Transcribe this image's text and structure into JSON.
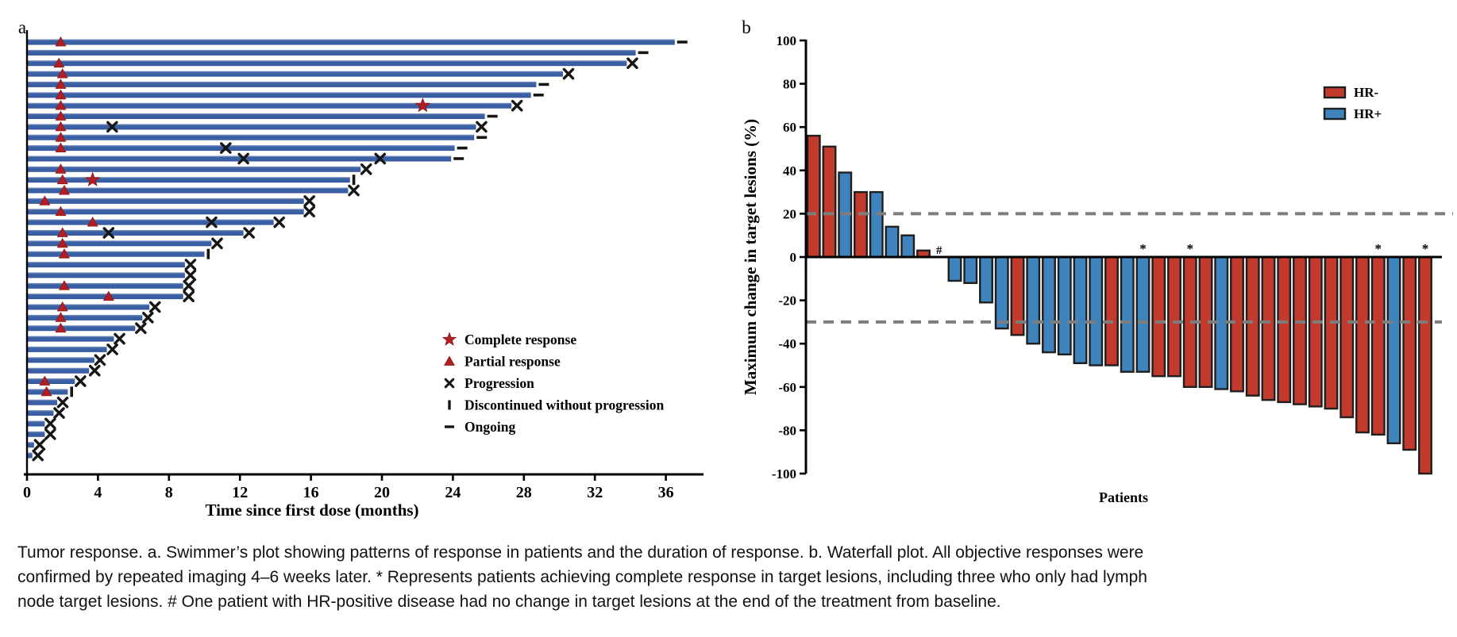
{
  "colors": {
    "swimmer_bar": "#3a5fa3",
    "swimmer_bar_light": "#8099c7",
    "swimmer_bar_dark": "#2d5197",
    "response_red": "#b01f24",
    "marker_black": "#161616",
    "hr_negative": "#c13a2c",
    "hr_positive": "#3f83bd",
    "bar_outline": "#1f1f1f",
    "dashed_line": "#7d7d7d",
    "axis": "#000000",
    "caption_text": "#111111"
  },
  "caption": {
    "lines": [
      "Tumor response. a. Swimmer’s plot showing patterns of response in patients and the duration of response. b. Waterfall plot. All objective responses were",
      "confirmed by repeated imaging 4–6 weeks later. * Represents patients achieving complete response in target lesions, including three who only had lymph",
      "node target lesions. # One patient with HR-positive disease had no change in target lesions at the end of the treatment from baseline."
    ]
  },
  "chart_data": [
    {
      "type": "bar",
      "subtype": "swimmer",
      "panel_label": "a",
      "xlabel": "Time since first dose (months)",
      "xlim": [
        0,
        38
      ],
      "xticks": [
        0,
        4,
        8,
        12,
        16,
        20,
        24,
        28,
        32,
        36
      ],
      "legend": [
        {
          "marker": "star",
          "label": "Complete response"
        },
        {
          "marker": "triangle",
          "label": "Partial response"
        },
        {
          "marker": "x",
          "label": "Progression"
        },
        {
          "marker": "bar",
          "label": "Discontinued without progression"
        },
        {
          "marker": "dash",
          "label": "Ongoing"
        }
      ],
      "bars": [
        {
          "m": 36.5,
          "end": "ongoing",
          "pr": 1.9
        },
        {
          "m": 34.3,
          "end": "ongoing"
        },
        {
          "m": 33.8,
          "end": "x",
          "pr": 1.8
        },
        {
          "m": 30.2,
          "end": "x",
          "pr": 2.0
        },
        {
          "m": 28.7,
          "end": "ongoing",
          "pr": 1.9
        },
        {
          "m": 28.4,
          "end": "ongoing",
          "pr": 1.9
        },
        {
          "m": 27.3,
          "end": "x",
          "pr": 1.9,
          "cr": 22.3
        },
        {
          "m": 25.8,
          "end": "ongoing",
          "pr": 1.9
        },
        {
          "m": 25.3,
          "end": "x",
          "pr": 1.9,
          "xs": [
            4.8
          ]
        },
        {
          "m": 25.2,
          "end": "ongoing",
          "pr": 1.9
        },
        {
          "m": 24.1,
          "end": "ongoing",
          "pr": 1.9,
          "xs": [
            11.2
          ]
        },
        {
          "m": 23.9,
          "end": "ongoing",
          "xs": [
            12.2,
            19.9
          ]
        },
        {
          "m": 18.8,
          "end": "x",
          "pr": 1.9
        },
        {
          "m": 18.2,
          "end": "disc",
          "pr": 2.0,
          "cr": 3.7
        },
        {
          "m": 18.1,
          "end": "x",
          "pr": 2.1
        },
        {
          "m": 15.6,
          "end": "x",
          "pr": 1.0
        },
        {
          "m": 15.6,
          "end": "x",
          "pr": 1.9
        },
        {
          "m": 13.9,
          "end": "x",
          "pr": 3.7,
          "xs": [
            10.4
          ]
        },
        {
          "m": 12.2,
          "end": "x",
          "pr": 2.0,
          "xs": [
            4.6
          ]
        },
        {
          "m": 10.4,
          "end": "x",
          "pr": 2.0
        },
        {
          "m": 10.0,
          "end": "disc",
          "pr": 2.1
        },
        {
          "m": 8.9,
          "end": "x"
        },
        {
          "m": 8.9,
          "end": "x"
        },
        {
          "m": 8.8,
          "end": "x",
          "pr": 2.1
        },
        {
          "m": 8.8,
          "end": "x",
          "pr": 4.6
        },
        {
          "m": 6.9,
          "end": "x",
          "pr": 2.0
        },
        {
          "m": 6.5,
          "end": "x",
          "pr": 1.9
        },
        {
          "m": 6.1,
          "end": "x",
          "pr": 1.9
        },
        {
          "m": 4.9,
          "end": "x"
        },
        {
          "m": 4.5,
          "end": "x"
        },
        {
          "m": 3.8,
          "end": "x"
        },
        {
          "m": 3.5,
          "end": "x"
        },
        {
          "m": 2.7,
          "end": "x",
          "pr": 1.0
        },
        {
          "m": 2.3,
          "end": "disc",
          "pr": 1.1
        },
        {
          "m": 1.7,
          "end": "x"
        },
        {
          "m": 1.5,
          "end": "x"
        },
        {
          "m": 1.0,
          "end": "x"
        },
        {
          "m": 1.0,
          "end": "x"
        },
        {
          "m": 0.4,
          "end": "x"
        },
        {
          "m": 0.3,
          "end": "x"
        }
      ]
    },
    {
      "type": "bar",
      "subtype": "waterfall",
      "panel_label": "b",
      "xlabel": "Patients",
      "ylabel": "Maximum change in target lesions (%)",
      "ylim": [
        -100,
        100
      ],
      "yticks": [
        100,
        80,
        60,
        40,
        20,
        0,
        -20,
        -40,
        -60,
        -80,
        -100
      ],
      "reference_lines": [
        20,
        -30
      ],
      "legend": [
        {
          "label": "HR-",
          "group": "-"
        },
        {
          "label": "HR+",
          "group": "+"
        }
      ],
      "values": [
        {
          "v": 56,
          "hr": "-"
        },
        {
          "v": 51,
          "hr": "-"
        },
        {
          "v": 39,
          "hr": "+"
        },
        {
          "v": 30,
          "hr": "-"
        },
        {
          "v": 30,
          "hr": "+"
        },
        {
          "v": 14,
          "hr": "+"
        },
        {
          "v": 10,
          "hr": "+"
        },
        {
          "v": 3,
          "hr": "-"
        },
        {
          "v": 0,
          "hr": "+",
          "note": "#"
        },
        {
          "v": -11,
          "hr": "+"
        },
        {
          "v": -12,
          "hr": "+"
        },
        {
          "v": -21,
          "hr": "+"
        },
        {
          "v": -33,
          "hr": "+"
        },
        {
          "v": -36,
          "hr": "-"
        },
        {
          "v": -40,
          "hr": "+"
        },
        {
          "v": -44,
          "hr": "+"
        },
        {
          "v": -45,
          "hr": "+"
        },
        {
          "v": -49,
          "hr": "+"
        },
        {
          "v": -50,
          "hr": "+"
        },
        {
          "v": -50,
          "hr": "-"
        },
        {
          "v": -53,
          "hr": "+"
        },
        {
          "v": -53,
          "hr": "+",
          "note": "*"
        },
        {
          "v": -55,
          "hr": "-"
        },
        {
          "v": -55,
          "hr": "-"
        },
        {
          "v": -60,
          "hr": "-",
          "note": "*"
        },
        {
          "v": -60,
          "hr": "-"
        },
        {
          "v": -61,
          "hr": "+"
        },
        {
          "v": -62,
          "hr": "-"
        },
        {
          "v": -64,
          "hr": "-"
        },
        {
          "v": -66,
          "hr": "-"
        },
        {
          "v": -67,
          "hr": "-"
        },
        {
          "v": -68,
          "hr": "-"
        },
        {
          "v": -69,
          "hr": "-"
        },
        {
          "v": -70,
          "hr": "-"
        },
        {
          "v": -74,
          "hr": "-"
        },
        {
          "v": -81,
          "hr": "-"
        },
        {
          "v": -82,
          "hr": "-",
          "note": "*"
        },
        {
          "v": -86,
          "hr": "+"
        },
        {
          "v": -89,
          "hr": "-"
        },
        {
          "v": -100,
          "hr": "-",
          "note": "*"
        }
      ]
    }
  ]
}
